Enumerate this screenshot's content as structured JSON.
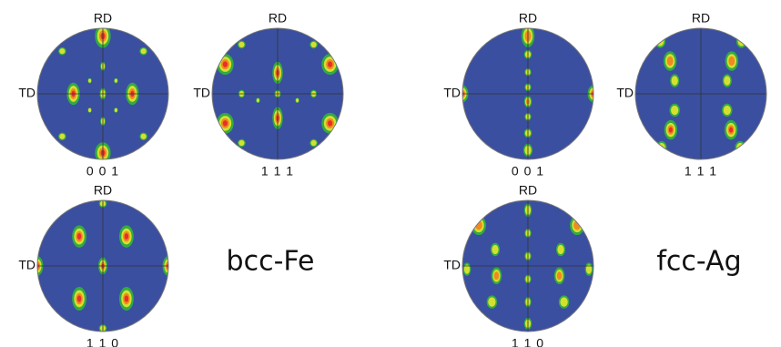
{
  "panels": [
    {
      "rd": "RD",
      "td": "TD",
      "pole": "0 0 1"
    },
    {
      "rd": "RD",
      "td": "TD",
      "pole": "1 1 1"
    },
    {
      "rd": "RD",
      "td": "TD",
      "pole": "1 1 0"
    },
    {
      "rd": "RD",
      "td": "TD",
      "pole": "0 0 1"
    },
    {
      "rd": "RD",
      "td": "TD",
      "pole": "1 1 1"
    },
    {
      "rd": "RD",
      "td": "TD",
      "pole": "1 1 0"
    }
  ],
  "materials": [
    "bcc-Fe",
    "fcc-Ag"
  ]
}
